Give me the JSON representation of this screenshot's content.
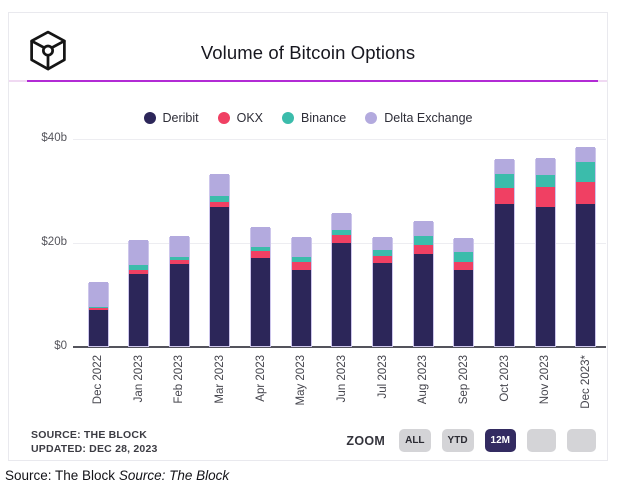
{
  "header": {
    "title": "Volume of Bitcoin Options",
    "logo": "the-block-logo"
  },
  "colors": {
    "accent_line": "#b22bd5",
    "accent_line_faded": "#f0d9f2",
    "active_button_bg": "#332b61",
    "grid": "#ededf1",
    "axis": "#54545c"
  },
  "chart_data": {
    "type": "bar",
    "variant": "stacked",
    "title": "Volume of Bitcoin Options",
    "unit": "billions USD",
    "grid": true,
    "legend_position": "top",
    "ylim": [
      0,
      40
    ],
    "y_ticks": [
      {
        "value": 0,
        "label": "$0"
      },
      {
        "value": 20,
        "label": "$20b"
      },
      {
        "value": 40,
        "label": "$40b"
      }
    ],
    "categories": [
      "Dec 2022",
      "Jan 2023",
      "Feb 2023",
      "Mar 2023",
      "Apr 2023",
      "May 2023",
      "Jun 2023",
      "Jul 2023",
      "Aug 2023",
      "Sep 2023",
      "Oct 2023",
      "Nov 2023",
      "Dec 2023*"
    ],
    "series": [
      {
        "name": "Deribit",
        "color": "#2c2659",
        "values": [
          6.9,
          13.9,
          15.8,
          26.8,
          16.9,
          14.6,
          19.9,
          16.0,
          17.6,
          14.6,
          27.4,
          26.7,
          27.4
        ]
      },
      {
        "name": "OKX",
        "color": "#f04063",
        "values": [
          0.5,
          0.8,
          0.8,
          0.9,
          1.4,
          1.6,
          1.4,
          1.3,
          1.8,
          1.6,
          3.0,
          3.8,
          4.2
        ]
      },
      {
        "name": "Binance",
        "color": "#3bbcab",
        "values": [
          0.1,
          0.8,
          0.6,
          1.2,
          0.8,
          1.0,
          1.1,
          1.2,
          1.8,
          1.8,
          2.6,
          2.3,
          3.7
        ]
      },
      {
        "name": "Delta Exchange",
        "color": "#b3aade",
        "values": [
          4.9,
          4.8,
          4.0,
          4.2,
          3.7,
          3.8,
          3.1,
          2.5,
          2.8,
          2.8,
          3.0,
          3.3,
          2.9
        ]
      }
    ]
  },
  "footer": {
    "source_line1": "SOURCE: THE BLOCK",
    "source_line2": "UPDATED: DEC 28, 2023",
    "zoom_label": "ZOOM",
    "zoom_buttons": [
      {
        "label": "ALL",
        "active": false
      },
      {
        "label": "YTD",
        "active": false
      },
      {
        "label": "12M",
        "active": true
      },
      {
        "label": "",
        "active": false
      },
      {
        "label": "",
        "active": false
      }
    ]
  },
  "caption": {
    "normal": "Source: The Block",
    "italic": "Source: The Block"
  }
}
